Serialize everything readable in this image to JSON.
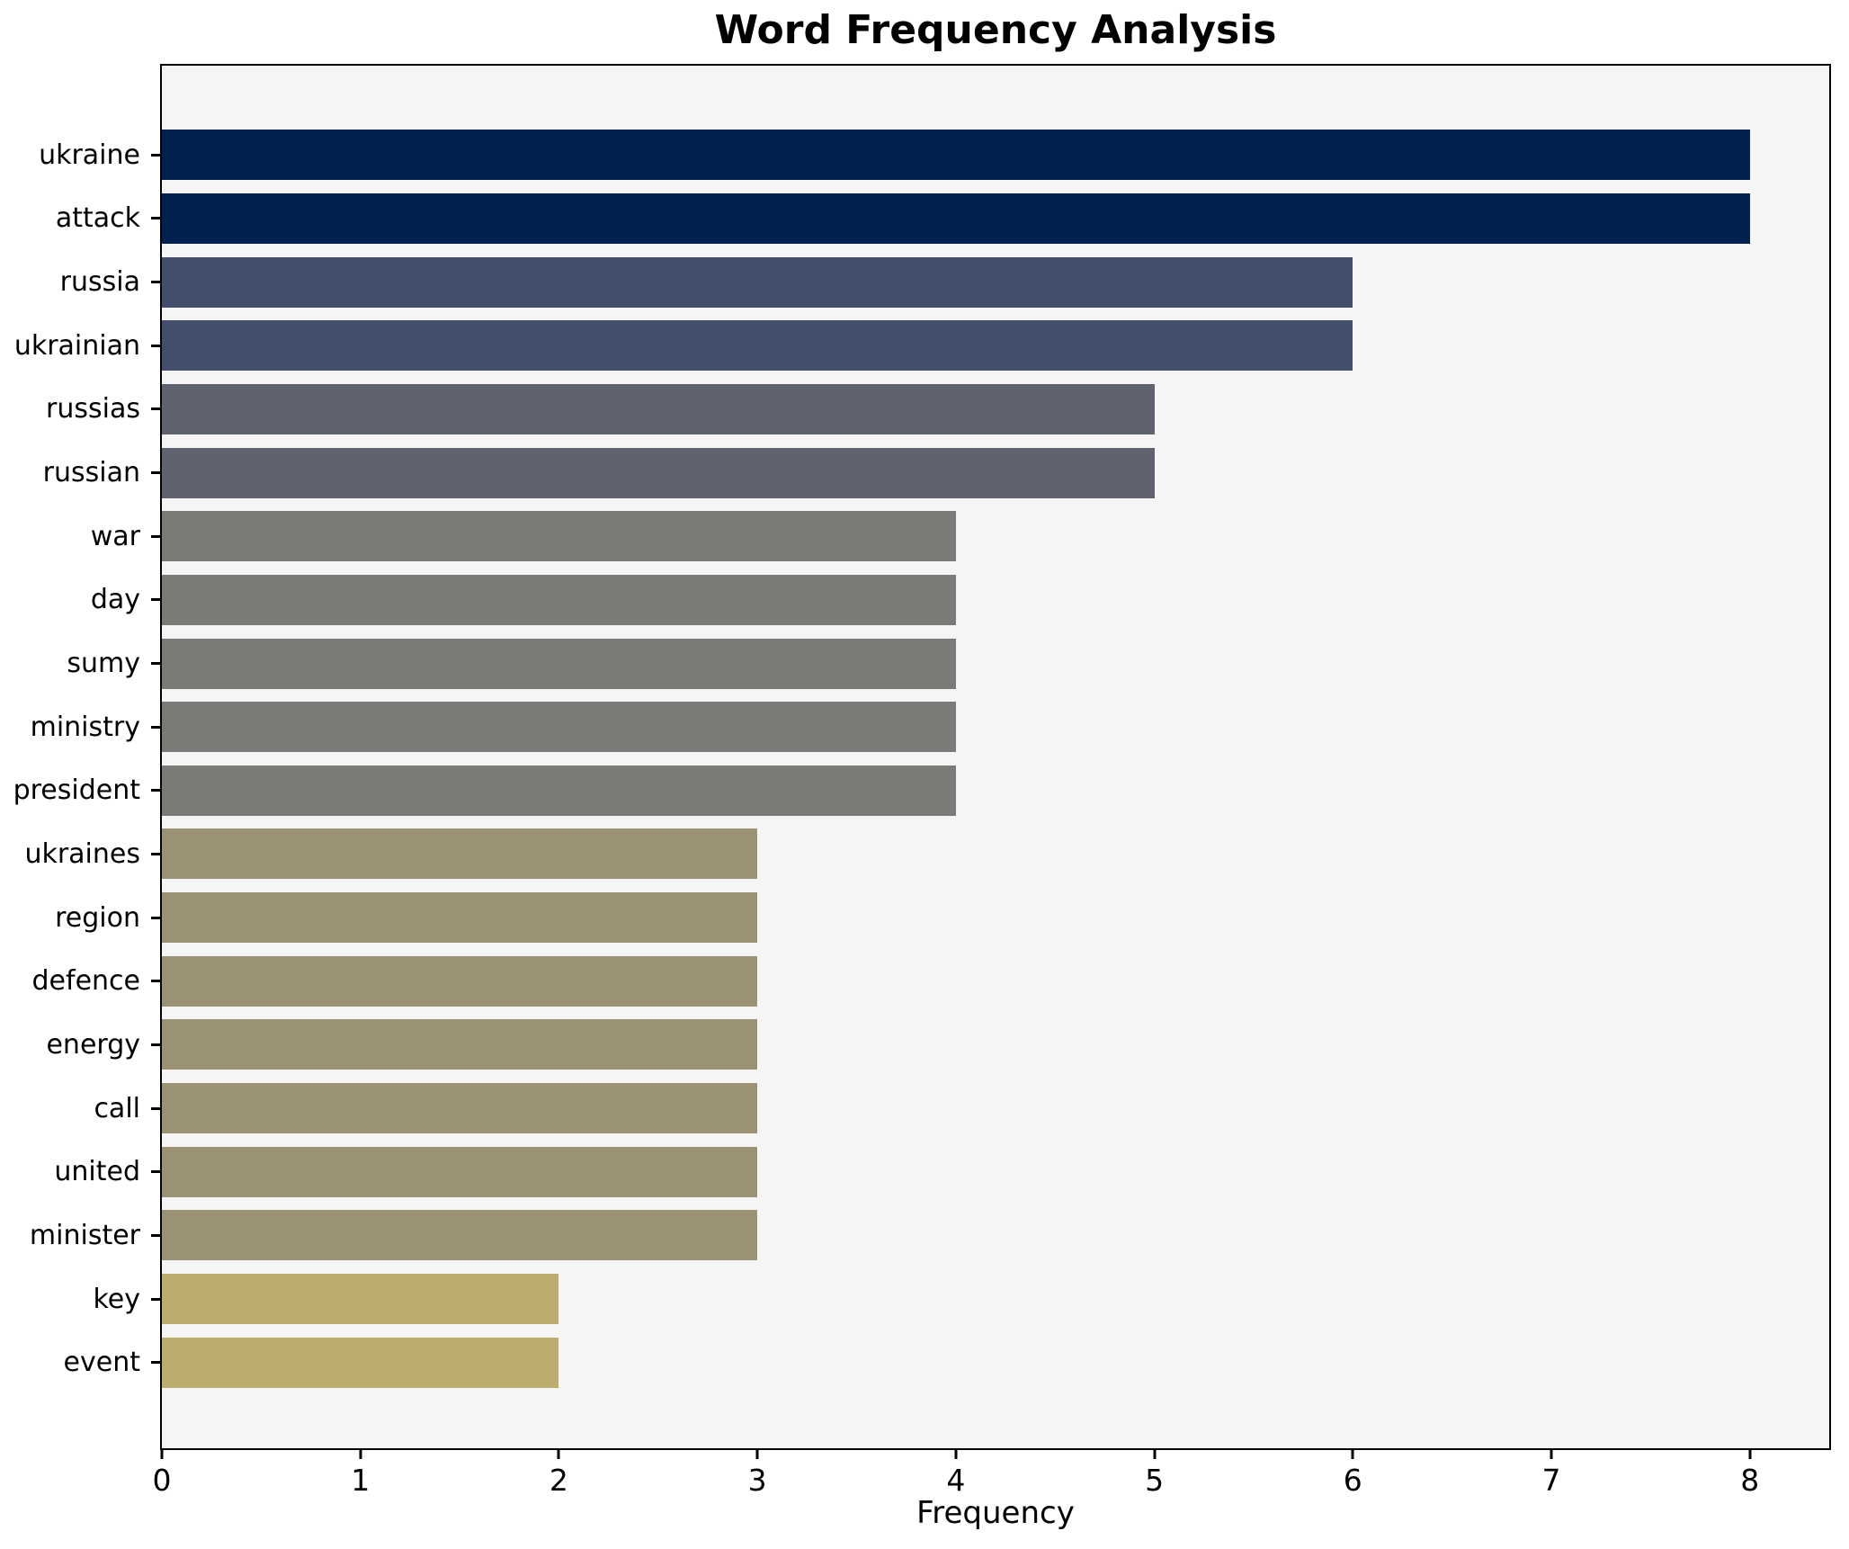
{
  "figure": {
    "title": "Word Frequency Analysis",
    "xlabel": "Frequency"
  },
  "chart_data": {
    "type": "bar",
    "orientation": "horizontal",
    "title": "Word Frequency Analysis",
    "xlabel": "Frequency",
    "ylabel": "",
    "categories": [
      "ukraine",
      "attack",
      "russia",
      "ukrainian",
      "russias",
      "russian",
      "war",
      "day",
      "sumy",
      "ministry",
      "president",
      "ukraines",
      "region",
      "defence",
      "energy",
      "call",
      "united",
      "minister",
      "key",
      "event"
    ],
    "values": [
      8,
      8,
      6,
      6,
      5,
      5,
      4,
      4,
      4,
      4,
      4,
      3,
      3,
      3,
      3,
      3,
      3,
      3,
      2,
      2
    ],
    "xlim": [
      0,
      8.4
    ],
    "xticks": [
      0,
      1,
      2,
      3,
      4,
      5,
      6,
      7,
      8
    ],
    "grid": false,
    "legend_position": "none",
    "colors": {
      "plot_background": "#f5f5f5",
      "figure_background": "#ffffff",
      "axis": "#000000",
      "text": "#000000",
      "value_colors": {
        "8": "#01224e",
        "6": "#434e6c",
        "5": "#5f6370",
        "4": "#7b7a76",
        "3": "#9a9273",
        "2": "#bbae6c"
      }
    }
  }
}
